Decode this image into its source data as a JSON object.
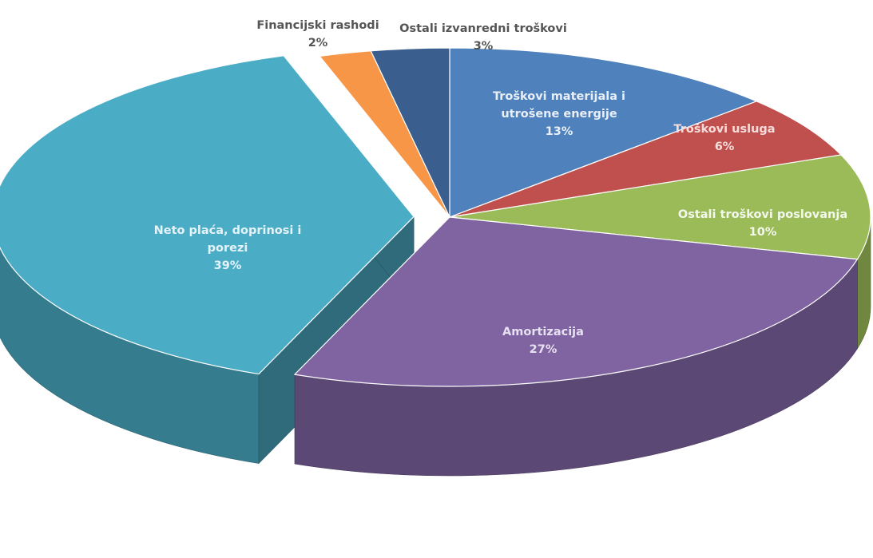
{
  "chart_data": {
    "type": "pie",
    "style": "3d-exploded",
    "title": "",
    "legend": "none",
    "slices": [
      {
        "name": "Troškovi materijala i utrošene energije",
        "label_lines": [
          "Troškovi materijala i",
          "utrošene energije"
        ],
        "percent_label": "13%",
        "value": 13,
        "color": "#4f81bd",
        "label_color": "#e9eff7",
        "label_inside": true,
        "exploded": false
      },
      {
        "name": "Troškovi usluga",
        "label_lines": [
          "Troškovi usluga"
        ],
        "percent_label": "6%",
        "value": 6,
        "color": "#c0504d",
        "label_color": "#f5dddc",
        "label_inside": true,
        "exploded": false
      },
      {
        "name": "Ostali troškovi poslovanja",
        "label_lines": [
          "Ostali troškovi poslovanja"
        ],
        "percent_label": "10%",
        "value": 10,
        "color": "#9bbb59",
        "label_color": "#f4f8ec",
        "label_inside": true,
        "exploded": false
      },
      {
        "name": "Amortizacija",
        "label_lines": [
          "Amortizacija"
        ],
        "percent_label": "27%",
        "value": 27,
        "color": "#8064a2",
        "label_color": "#e7e0f0",
        "label_inside": true,
        "exploded": false
      },
      {
        "name": "Neto plaća, doprinosi i porezi",
        "label_lines": [
          "Neto plaća, doprinosi i",
          "porezi"
        ],
        "percent_label": "39%",
        "value": 39,
        "color": "#4bacc6",
        "label_color": "#e3f3f8",
        "label_inside": true,
        "exploded": true
      },
      {
        "name": "Financijski rashodi",
        "label_lines": [
          "Financijski rashodi"
        ],
        "percent_label": "2%",
        "value": 2,
        "color": "#f79646",
        "label_color": "#555555",
        "label_inside": false,
        "exploded": false
      },
      {
        "name": "Ostali izvanredni troškovi",
        "label_lines": [
          "Ostali izvanredni troškovi"
        ],
        "percent_label": "3%",
        "value": 3,
        "color": "#3a5f8f",
        "label_color": "#555555",
        "label_inside": false,
        "exploded": false
      }
    ]
  }
}
